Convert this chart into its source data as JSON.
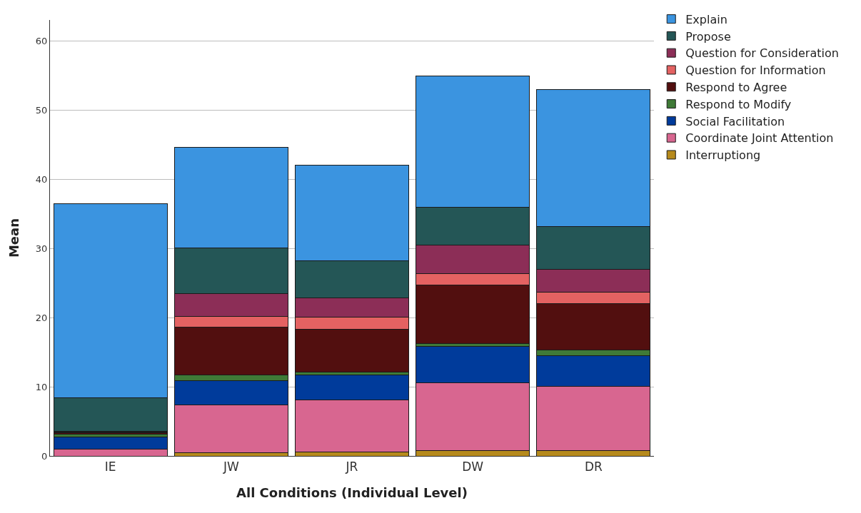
{
  "chart_data": {
    "type": "bar",
    "stacked": true,
    "xlabel": "All Conditions (Individual Level)",
    "ylabel": "Mean",
    "categories": [
      "IE",
      "JW",
      "JR",
      "DW",
      "DR"
    ],
    "series": [
      {
        "name": "Interruptiong",
        "color": "#b68a1c",
        "values": [
          0,
          0.5,
          0.6,
          0.8,
          0.8
        ]
      },
      {
        "name": "Coordinate Joint Attention",
        "color": "#d86690",
        "values": [
          1.0,
          6.9,
          7.5,
          9.8,
          9.3
        ]
      },
      {
        "name": "Social Facilitation",
        "color": "#003b9b",
        "values": [
          1.7,
          3.5,
          3.6,
          5.2,
          4.4
        ]
      },
      {
        "name": "Respond to Modify",
        "color": "#3f7a37",
        "values": [
          0.4,
          0.8,
          0.4,
          0.4,
          0.8
        ]
      },
      {
        "name": "Respond to Agree",
        "color": "#520f0f",
        "values": [
          0.3,
          6.9,
          6.2,
          8.5,
          6.7
        ]
      },
      {
        "name": "Question for Information",
        "color": "#e46262",
        "values": [
          0.1,
          1.6,
          1.8,
          1.6,
          1.7
        ]
      },
      {
        "name": "Question for Consideration",
        "color": "#8c2e57",
        "values": [
          0.1,
          3.3,
          2.7,
          4.2,
          3.3
        ]
      },
      {
        "name": "Propose",
        "color": "#245656",
        "values": [
          4.8,
          6.6,
          5.4,
          5.4,
          6.1
        ]
      },
      {
        "name": "Explain",
        "color": "#3b94e0",
        "values": [
          28.0,
          14.5,
          13.8,
          19.0,
          19.8
        ]
      }
    ],
    "ylim": [
      0,
      63
    ],
    "yticks": [
      0,
      10,
      20,
      30,
      40,
      50,
      60
    ],
    "grid": "y",
    "legend": "top right"
  }
}
